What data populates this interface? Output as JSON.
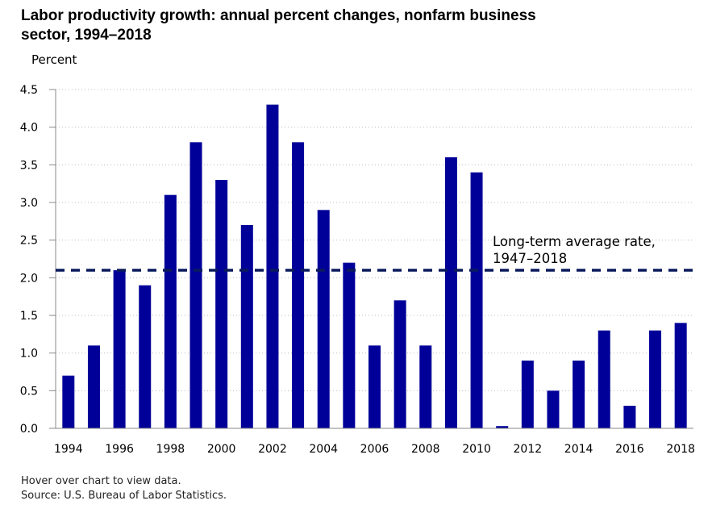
{
  "chart_data": {
    "type": "bar",
    "title": "Labor productivity growth: annual percent changes, nonfarm business sector, 1994–2018",
    "ylabel": "Percent",
    "xlabel": "",
    "ylim": [
      0,
      4.5
    ],
    "yticks": [
      "0.0",
      "0.5",
      "1.0",
      "1.5",
      "2.0",
      "2.5",
      "3.0",
      "3.5",
      "4.0",
      "4.5"
    ],
    "categories": [
      "1994",
      "1995",
      "1996",
      "1997",
      "1998",
      "1999",
      "2000",
      "2001",
      "2002",
      "2003",
      "2004",
      "2005",
      "2006",
      "2007",
      "2008",
      "2009",
      "2010",
      "2011",
      "2012",
      "2013",
      "2014",
      "2015",
      "2016",
      "2017",
      "2018"
    ],
    "xtick_labels": [
      "1994",
      "1996",
      "1998",
      "2000",
      "2002",
      "2004",
      "2006",
      "2008",
      "2010",
      "2012",
      "2014",
      "2016",
      "2018"
    ],
    "values": [
      0.7,
      1.1,
      2.1,
      1.9,
      3.1,
      3.8,
      3.3,
      2.7,
      4.3,
      3.8,
      2.9,
      2.2,
      1.1,
      1.7,
      1.1,
      3.6,
      3.4,
      0.03,
      0.9,
      0.5,
      0.9,
      1.3,
      0.3,
      1.3,
      1.4
    ],
    "reference_line": {
      "value": 2.1,
      "label_line1": "Long-term average rate,",
      "label_line2": "1947–2018",
      "style": "dashed"
    },
    "grid": true,
    "colors": {
      "bar": "#000099",
      "reference_line": "#0a1a5c",
      "grid": "#bbbbbb"
    }
  },
  "footer": {
    "hover_note": "Hover over chart to view data.",
    "source": "Source: U.S. Bureau of Labor Statistics."
  }
}
